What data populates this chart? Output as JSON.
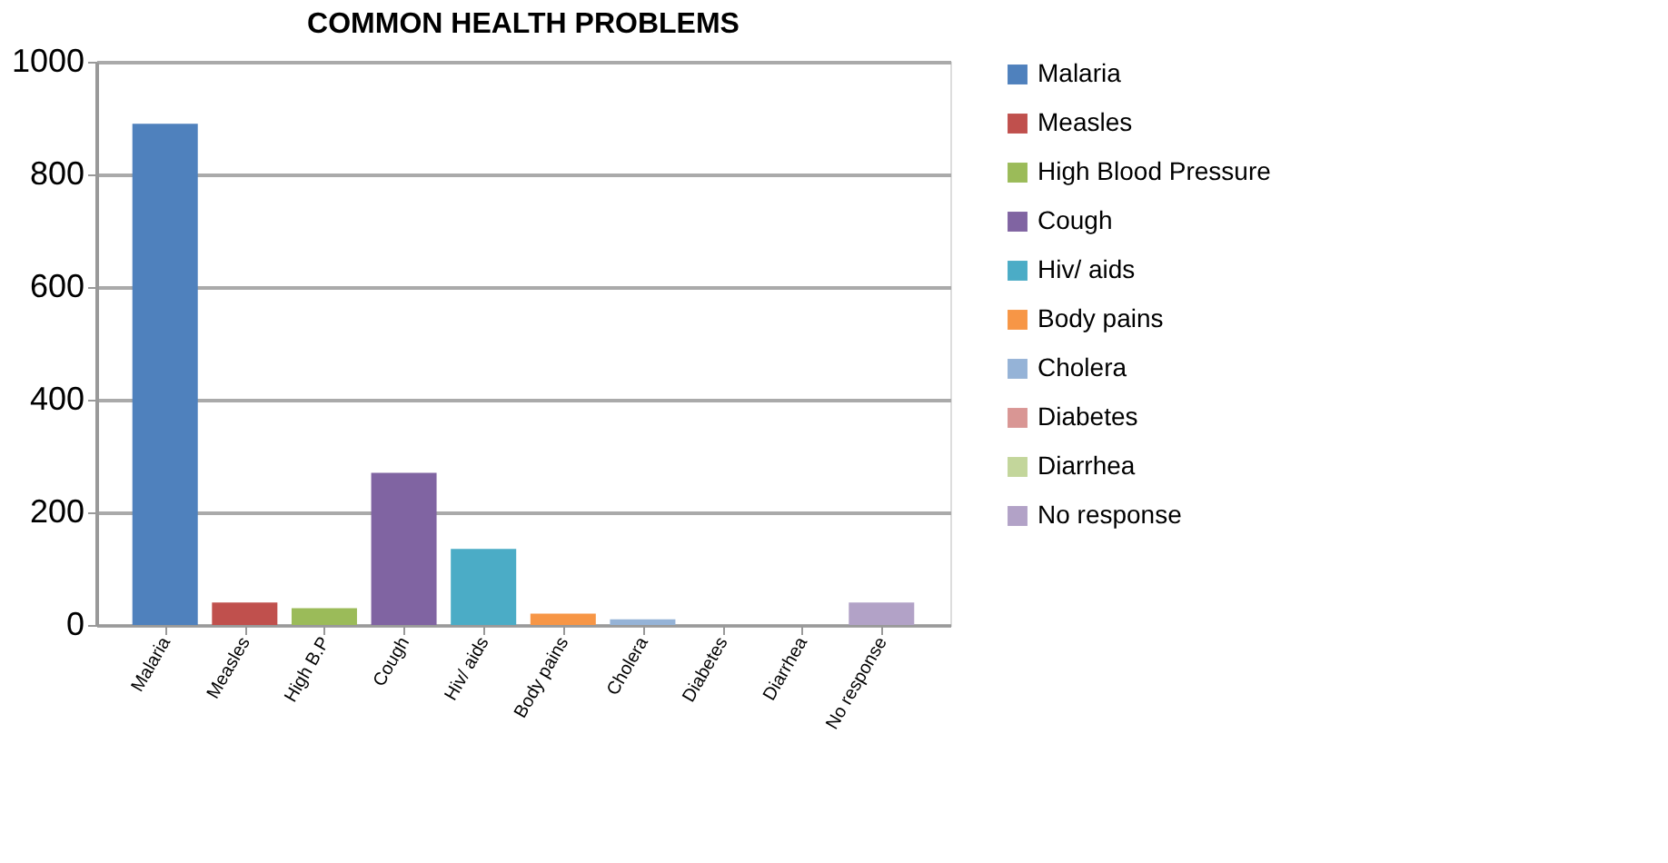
{
  "chart_data": {
    "type": "bar",
    "title": "COMMON HEALTH PROBLEMS",
    "categories": [
      "Malaria",
      "Measles",
      "High B.P",
      "Cough",
      "Hiv/ aids",
      "Body pains",
      "Cholera",
      "Diabetes",
      "Diarrhea",
      "No response"
    ],
    "series": [
      {
        "name": "Malaria",
        "color": "#4f81bd",
        "values": [
          890,
          null,
          null,
          null,
          null,
          null,
          null,
          null,
          null,
          null
        ]
      },
      {
        "name": "Measles",
        "color": "#c0504d",
        "values": [
          null,
          40,
          null,
          null,
          null,
          null,
          null,
          null,
          null,
          null
        ]
      },
      {
        "name": "High Blood Pressure",
        "color": "#9bbb59",
        "values": [
          null,
          null,
          30,
          null,
          null,
          null,
          null,
          null,
          null,
          null
        ]
      },
      {
        "name": "Cough",
        "color": "#8064a2",
        "values": [
          null,
          null,
          null,
          270,
          null,
          null,
          null,
          null,
          null,
          null
        ]
      },
      {
        "name": "Hiv/ aids",
        "color": "#4bacc6",
        "values": [
          null,
          null,
          null,
          null,
          135,
          null,
          null,
          null,
          null,
          null
        ]
      },
      {
        "name": "Body pains",
        "color": "#f79646",
        "values": [
          null,
          null,
          null,
          null,
          null,
          20,
          null,
          null,
          null,
          null
        ]
      },
      {
        "name": "Cholera",
        "color": "#95b3d7",
        "values": [
          null,
          null,
          null,
          null,
          null,
          null,
          10,
          null,
          null,
          null
        ]
      },
      {
        "name": "Diabetes",
        "color": "#d99694",
        "values": [
          null,
          null,
          null,
          null,
          null,
          null,
          null,
          0,
          null,
          null
        ]
      },
      {
        "name": "Diarrhea",
        "color": "#c3d69b",
        "values": [
          null,
          null,
          null,
          null,
          null,
          null,
          null,
          null,
          0,
          null
        ]
      },
      {
        "name": "No response",
        "color": "#b2a2c7",
        "values": [
          null,
          null,
          null,
          null,
          null,
          null,
          null,
          null,
          null,
          40
        ]
      }
    ],
    "ylim": [
      0,
      1000
    ],
    "yticks": [
      0,
      200,
      400,
      600,
      800,
      1000
    ],
    "grid": "y",
    "legend": "right"
  }
}
